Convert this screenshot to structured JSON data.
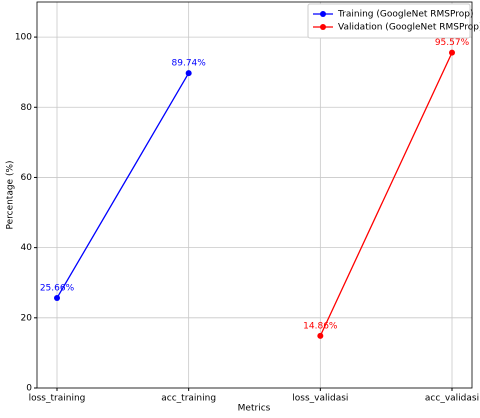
{
  "chart_data": {
    "type": "line",
    "categories": [
      "loss_training",
      "acc_training",
      "loss_validasi",
      "acc_validasi"
    ],
    "series": [
      {
        "name": "Training (GoogleNet RMSProp)",
        "color": "#0000ff",
        "values": [
          25.66,
          89.74,
          null,
          null
        ],
        "value_labels": [
          "25.66%",
          "89.74%",
          null,
          null
        ]
      },
      {
        "name": "Validation (GoogleNet RMSProp)",
        "color": "#ff0000",
        "values": [
          null,
          null,
          14.86,
          95.57
        ],
        "value_labels": [
          null,
          null,
          "14.86%",
          "95.57%"
        ]
      }
    ],
    "xlabel": "Metrics",
    "ylabel": "Percentage (%)",
    "ylim": [
      0,
      110
    ],
    "yticks": [
      0,
      20,
      40,
      60,
      80,
      100
    ],
    "grid": true,
    "legend": "upper-right"
  }
}
